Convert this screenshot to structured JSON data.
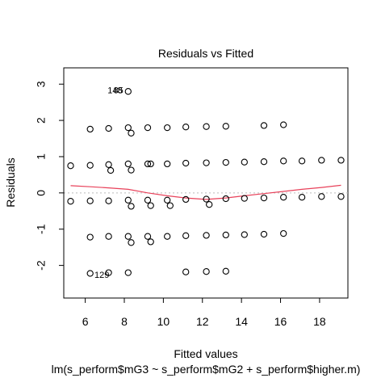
{
  "chart_data": {
    "type": "scatter",
    "title": "Residuals vs Fitted",
    "xlabel": "Fitted values",
    "ylabel": "Residuals",
    "subtitle": "lm(s_perform$mG3 ~ s_perform$mG2 + s_perform$higher.m)",
    "xlim": [
      4.9,
      19.45
    ],
    "ylim": [
      -2.9,
      3.45
    ],
    "x_ticks": [
      6,
      8,
      10,
      12,
      14,
      16,
      18
    ],
    "y_ticks": [
      -2,
      -1,
      0,
      1,
      2,
      3
    ],
    "x_tick_labels": [
      "6",
      "8",
      "10",
      "12",
      "14",
      "16",
      "18"
    ],
    "y_tick_labels": [
      "-2",
      "-1",
      "0",
      "1",
      "2",
      "3"
    ],
    "grid": false,
    "reference_line": 0,
    "colors": {
      "points": "#000000",
      "smooth": "#e8415a",
      "reference": "#bbbbbb"
    },
    "points": [
      [
        5.25,
        0.75
      ],
      [
        5.25,
        -0.23
      ],
      [
        6.25,
        1.76
      ],
      [
        6.25,
        0.76
      ],
      [
        6.25,
        -0.22
      ],
      [
        6.25,
        -1.22
      ],
      [
        6.25,
        -2.22
      ],
      [
        7.2,
        1.78
      ],
      [
        7.2,
        0.78
      ],
      [
        7.2,
        -0.22
      ],
      [
        7.2,
        -1.2
      ],
      [
        7.2,
        -2.2
      ],
      [
        7.3,
        0.62
      ],
      [
        8.2,
        2.8
      ],
      [
        8.2,
        1.8
      ],
      [
        8.2,
        0.8
      ],
      [
        8.2,
        -0.2
      ],
      [
        8.2,
        -1.2
      ],
      [
        8.2,
        -2.2
      ],
      [
        8.35,
        1.65
      ],
      [
        8.35,
        0.63
      ],
      [
        8.35,
        -0.37
      ],
      [
        8.35,
        -1.37
      ],
      [
        9.2,
        1.8
      ],
      [
        9.2,
        0.8
      ],
      [
        9.2,
        -0.2
      ],
      [
        9.2,
        -1.2
      ],
      [
        9.35,
        0.8
      ],
      [
        9.35,
        -0.35
      ],
      [
        9.35,
        -1.35
      ],
      [
        10.2,
        1.8
      ],
      [
        10.2,
        0.8
      ],
      [
        10.2,
        -0.2
      ],
      [
        10.2,
        -1.2
      ],
      [
        10.35,
        -0.35
      ],
      [
        11.15,
        1.82
      ],
      [
        11.15,
        0.82
      ],
      [
        11.15,
        -0.18
      ],
      [
        11.15,
        -1.18
      ],
      [
        11.15,
        -2.18
      ],
      [
        12.2,
        1.83
      ],
      [
        12.2,
        0.83
      ],
      [
        12.2,
        -0.17
      ],
      [
        12.2,
        -1.17
      ],
      [
        12.2,
        -2.17
      ],
      [
        12.35,
        -0.32
      ],
      [
        13.2,
        1.84
      ],
      [
        13.2,
        0.84
      ],
      [
        13.2,
        -0.16
      ],
      [
        13.2,
        -1.16
      ],
      [
        13.2,
        -2.16
      ],
      [
        14.15,
        0.85
      ],
      [
        14.15,
        -0.15
      ],
      [
        14.15,
        -1.15
      ],
      [
        15.15,
        1.86
      ],
      [
        15.15,
        0.86
      ],
      [
        15.15,
        -0.14
      ],
      [
        15.15,
        -1.14
      ],
      [
        16.15,
        1.88
      ],
      [
        16.15,
        0.88
      ],
      [
        16.15,
        -0.12
      ],
      [
        16.15,
        -1.12
      ],
      [
        17.1,
        0.88
      ],
      [
        17.1,
        -0.12
      ],
      [
        18.1,
        0.9
      ],
      [
        18.1,
        -0.1
      ],
      [
        19.1,
        0.9
      ],
      [
        19.1,
        -0.1
      ]
    ],
    "smooth_line": [
      [
        5.25,
        0.2
      ],
      [
        6.25,
        0.17
      ],
      [
        7.2,
        0.14
      ],
      [
        8.2,
        0.1
      ],
      [
        9.2,
        0.0
      ],
      [
        10.2,
        -0.08
      ],
      [
        11.15,
        -0.14
      ],
      [
        12.2,
        -0.18
      ],
      [
        13.2,
        -0.14
      ],
      [
        14.15,
        -0.08
      ],
      [
        15.15,
        -0.02
      ],
      [
        16.15,
        0.04
      ],
      [
        17.1,
        0.1
      ],
      [
        18.1,
        0.15
      ],
      [
        19.1,
        0.21
      ]
    ],
    "annotations": [
      {
        "text": "148",
        "x": 7.52,
        "y": 2.81
      },
      {
        "text": "85",
        "x": 7.7,
        "y": 2.81
      },
      {
        "text": "129",
        "x": 6.85,
        "y": -2.28
      }
    ]
  }
}
